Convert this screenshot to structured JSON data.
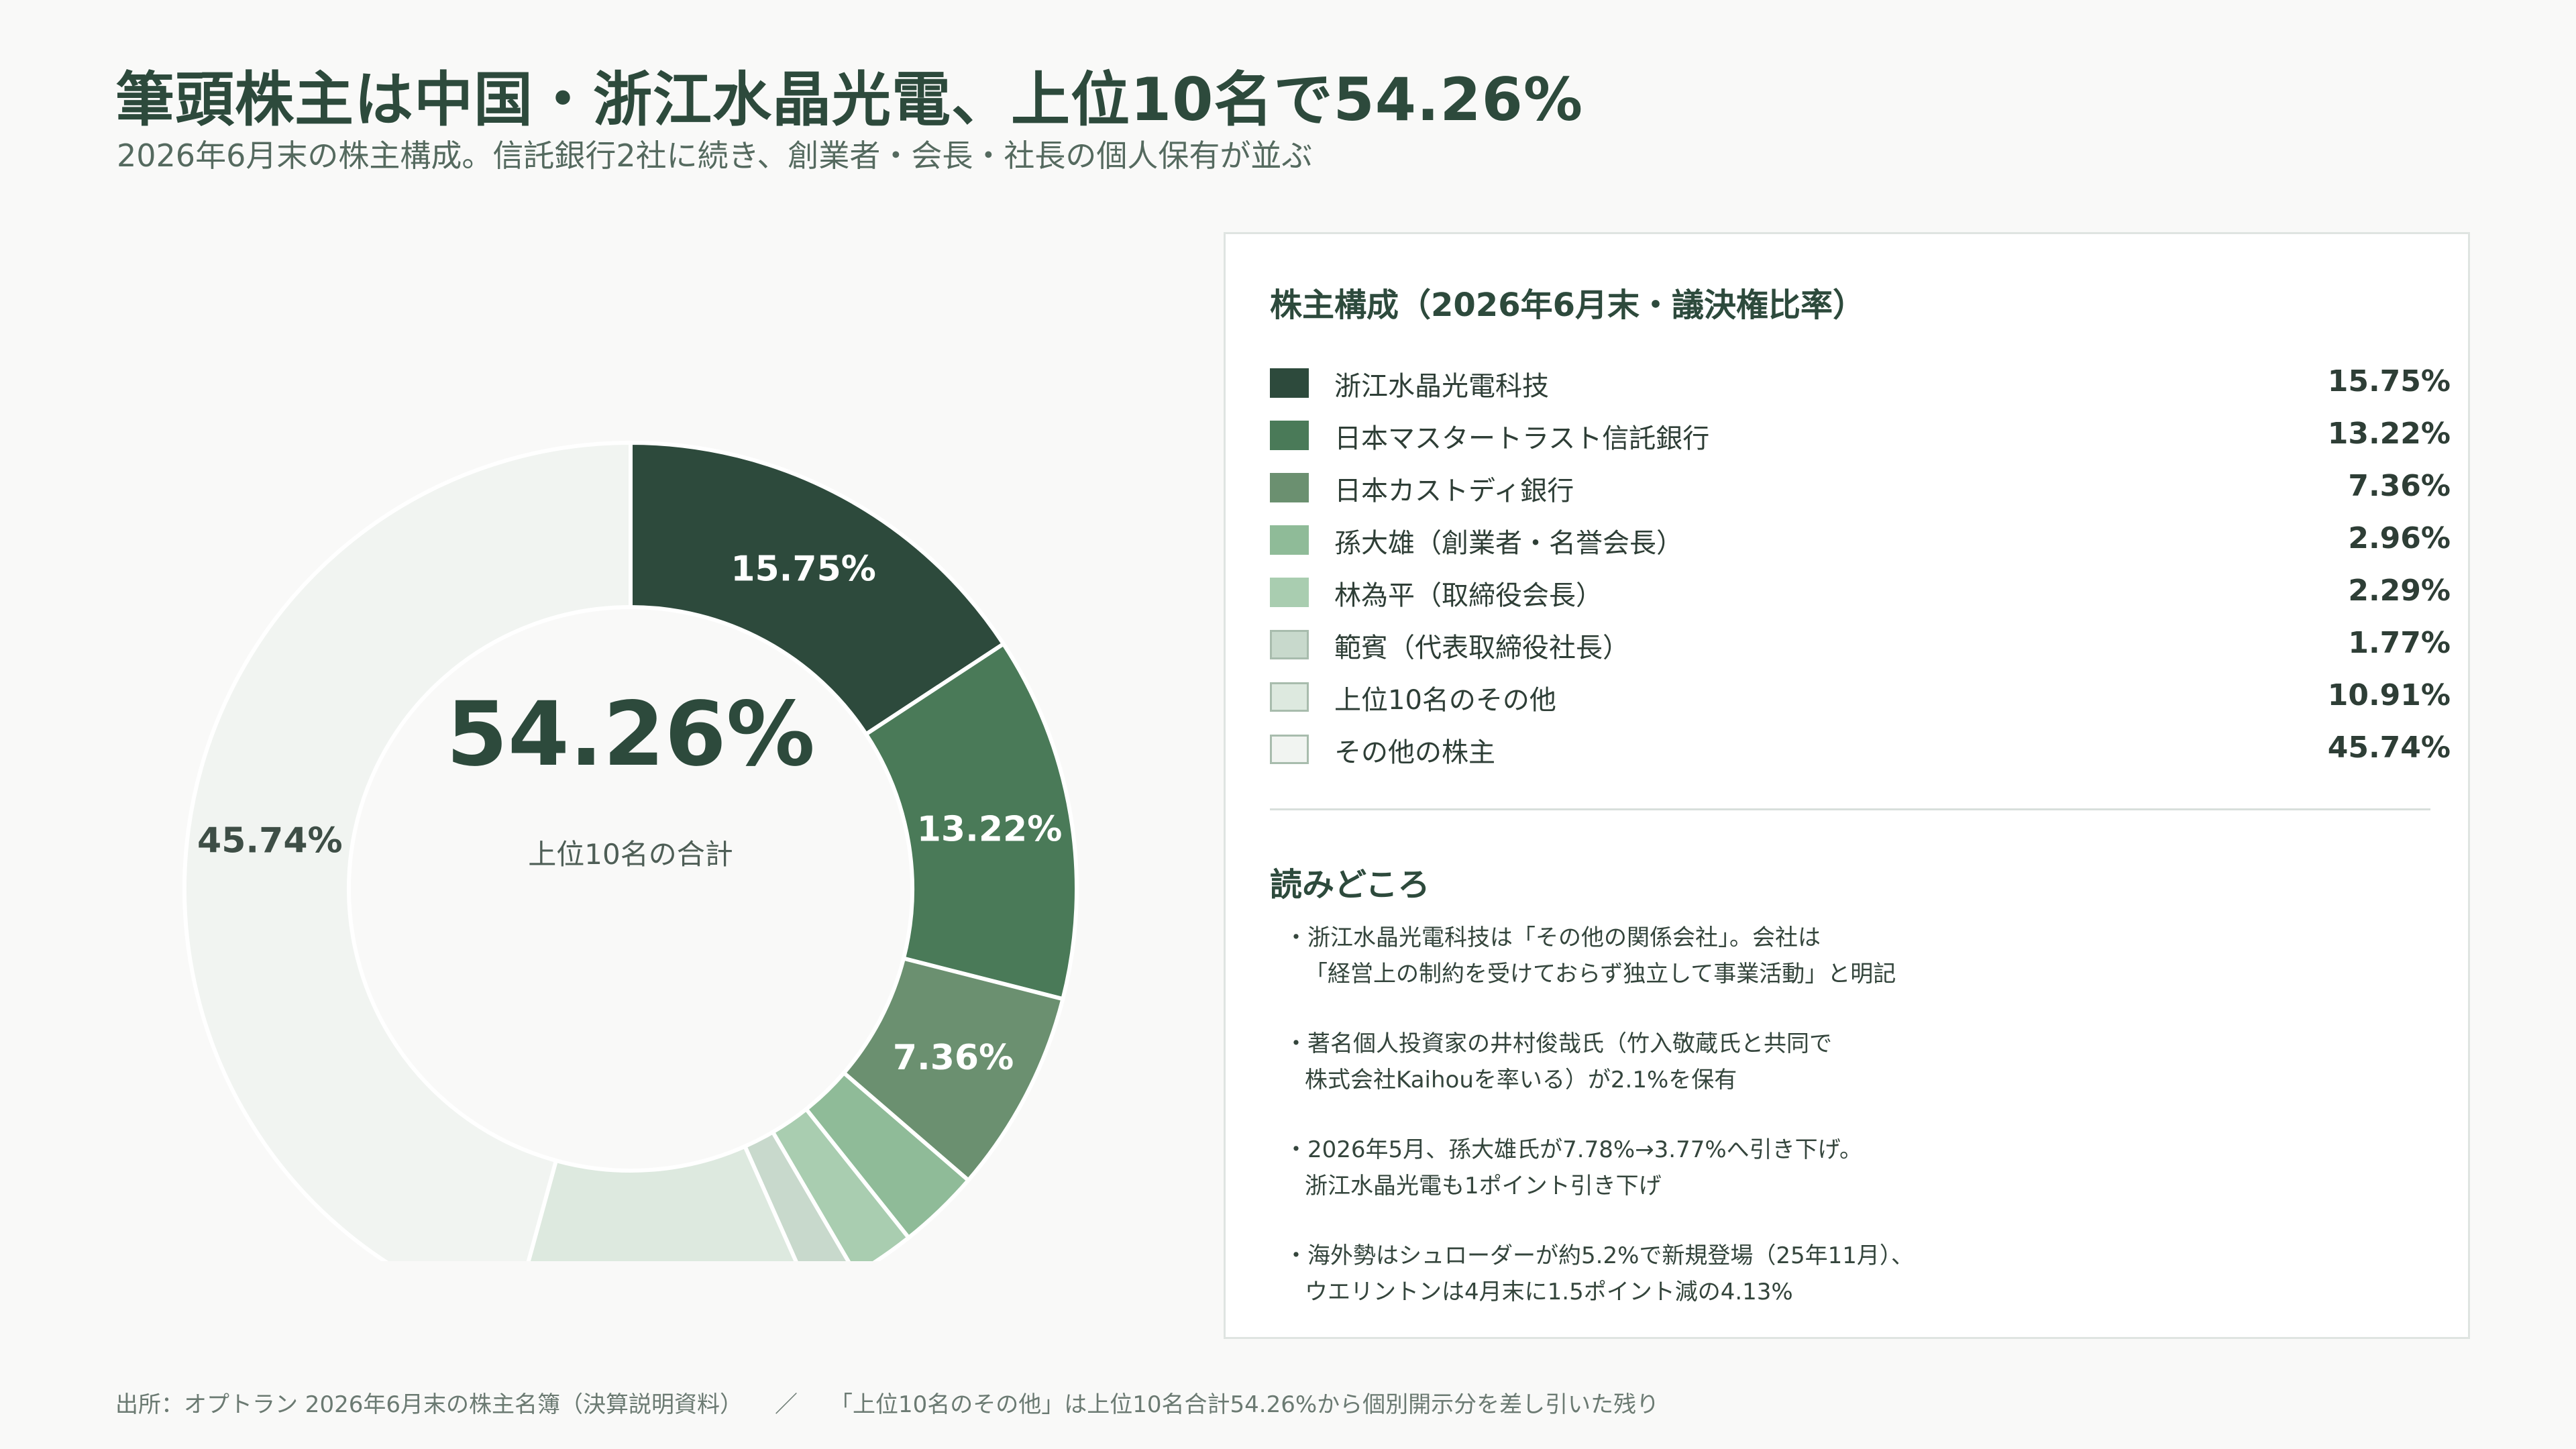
{
  "header": {
    "title": "筆頭株主は中国・浙江水晶光電、上位10名で54.26%",
    "subtitle": "2026年6月末の株主構成。信託銀行2社に続き、創業者・会長・社長の個人保有が並ぶ"
  },
  "chart_data": {
    "type": "pie",
    "donut": true,
    "center_value": "54.26%",
    "center_label": "上位10名の合計",
    "unit": "%",
    "slices": [
      {
        "label": "浙江水晶光電科技",
        "value": 15.75,
        "value_label": "15.75%",
        "color": "#2d4a3c",
        "text_color": "#ffffff",
        "show_label": true
      },
      {
        "label": "日本マスタートラスト信託銀行",
        "value": 13.22,
        "value_label": "13.22%",
        "color": "#4a7a58",
        "text_color": "#ffffff",
        "show_label": true
      },
      {
        "label": "日本カストディ銀行",
        "value": 7.36,
        "value_label": "7.36%",
        "color": "#6b9070",
        "text_color": "#ffffff",
        "show_label": true
      },
      {
        "label": "孫大雄（創業者・名誉会長）",
        "value": 2.96,
        "value_label": "2.96%",
        "color": "#8fbb98",
        "text_color": "#ffffff",
        "show_label": false
      },
      {
        "label": "林為平（取締役会長）",
        "value": 2.29,
        "value_label": "2.29%",
        "color": "#a9cdb0",
        "text_color": "#ffffff",
        "show_label": false
      },
      {
        "label": "範賓（代表取締役社長）",
        "value": 1.77,
        "value_label": "1.77%",
        "color": "#c8d9cc",
        "text_color": "#ffffff",
        "show_label": false
      },
      {
        "label": "上位10名のその他",
        "value": 10.91,
        "value_label": "10.91%",
        "color": "#dde9df",
        "text_color": "#2e3e36",
        "show_label": false
      },
      {
        "label": "その他の株主",
        "value": 45.74,
        "value_label": "45.74%",
        "color": "#f1f4f1",
        "text_color": "#3e4e46",
        "show_label": true
      }
    ]
  },
  "legend": {
    "title": "株主構成（2026年6月末・議決権比率）"
  },
  "notes": {
    "title": "読みどころ",
    "items": [
      {
        "line1": "・浙江水晶光電科技は「その他の関係会社」。会社は",
        "line2": "「経営上の制約を受けておらず独立して事業活動」と明記"
      },
      {
        "line1": "・著名個人投資家の井村俊哉氏（竹入敬蔵氏と共同で",
        "line2": "株式会社Kaihouを率いる）が2.1%を保有"
      },
      {
        "line1": "・2026年5月、孫大雄氏が7.78%→3.77%へ引き下げ。",
        "line2": "浙江水晶光電も1ポイント引き下げ"
      },
      {
        "line1": "・海外勢はシュローダーが約5.2%で新規登場（25年11月）、",
        "line2": "ウエリントンは4月末に1.5ポイント減の4.13%"
      }
    ]
  },
  "footer": {
    "source": "出所：オプトラン 2026年6月末の株主名簿（決算説明資料）",
    "separator": "／",
    "note": "「上位10名のその他」は上位10名合計54.26%から個別開示分を差し引いた残り"
  }
}
